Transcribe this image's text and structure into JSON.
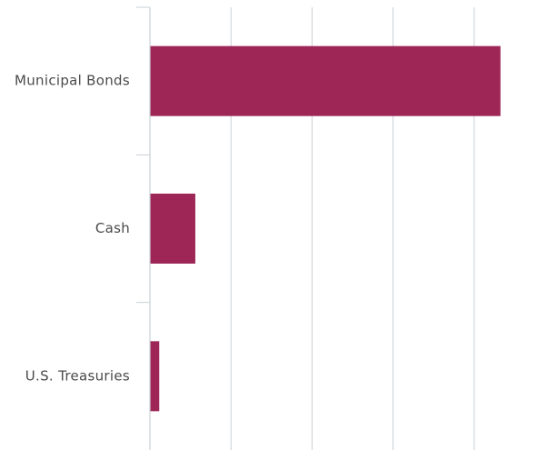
{
  "chart_data": {
    "type": "bar",
    "orientation": "horizontal",
    "categories": [
      "Municipal Bonds",
      "Cash",
      "U.S. Treasuries"
    ],
    "values": [
      86.5,
      11.2,
      2.3
    ],
    "xlim": [
      0,
      100
    ],
    "x_gridlines": [
      0,
      20,
      40,
      60,
      80
    ],
    "grid": true,
    "x_tick_labels_visible": false,
    "legend": "none",
    "bar_color": "#9e2657",
    "axis_color": "#c9d0d6",
    "label_color": "#4a4a4a"
  }
}
